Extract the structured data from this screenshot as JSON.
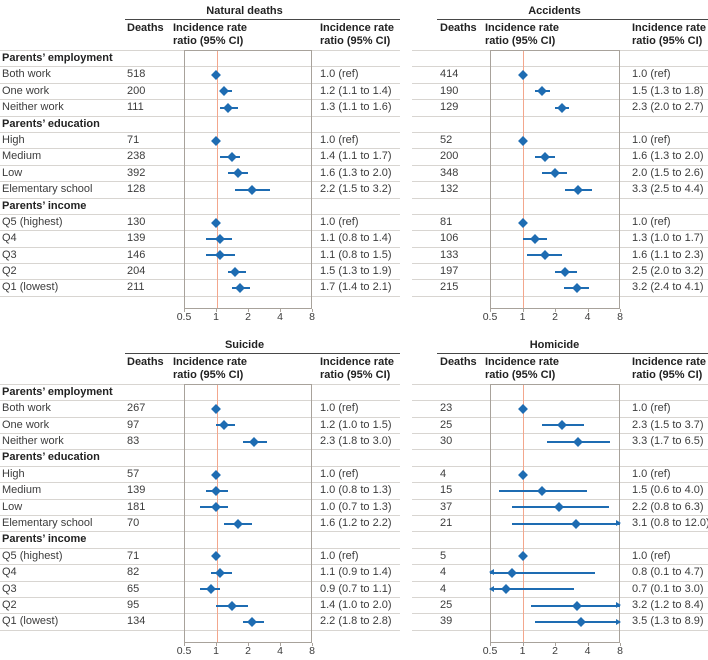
{
  "figure": {
    "axis": {
      "min": 0.5,
      "max": 8,
      "ticks": [
        0.5,
        1,
        2,
        4,
        8
      ],
      "tick_labels": [
        "0.5",
        "1",
        "2",
        "4",
        "8"
      ]
    },
    "ref_value": 1,
    "colors": {
      "marker": "#1e6cb2",
      "ref-line": "#f3a78d",
      "row-line": "#d8d5d1",
      "box-border": "#a8a29b",
      "title-rule": "#474747",
      "text": "#3c3c3c",
      "text-strong": "#222222"
    },
    "col_headers": {
      "deaths": "Deaths",
      "irr": "Incidence rate\nratio (95% CI)"
    }
  },
  "chart_data": {
    "type": "forest",
    "x_scale": "log2",
    "x_range": [
      0.5,
      8
    ],
    "x_ticks": [
      0.5,
      1,
      2,
      4,
      8
    ],
    "value_label": "Incidence rate ratio (95% CI)",
    "sections": [
      {
        "panel_titles": [
          "Natural deaths",
          "Accidents"
        ],
        "rows": [
          {
            "type": "group",
            "label": "Parents’ employment"
          },
          {
            "type": "data",
            "label": "Both work",
            "left": {
              "deaths": "518",
              "est": 1.0,
              "text": "1.0 (ref)"
            },
            "right": {
              "deaths": "414",
              "est": 1.0,
              "text": "1.0 (ref)"
            }
          },
          {
            "type": "data",
            "label": "One work",
            "left": {
              "deaths": "200",
              "est": 1.2,
              "lo": 1.1,
              "hi": 1.4,
              "text": "1.2 (1.1 to 1.4)"
            },
            "right": {
              "deaths": "190",
              "est": 1.5,
              "lo": 1.3,
              "hi": 1.8,
              "text": "1.5 (1.3 to 1.8)"
            }
          },
          {
            "type": "data",
            "label": "Neither work",
            "left": {
              "deaths": "111",
              "est": 1.3,
              "lo": 1.1,
              "hi": 1.6,
              "text": "1.3 (1.1 to 1.6)"
            },
            "right": {
              "deaths": "129",
              "est": 2.3,
              "lo": 2.0,
              "hi": 2.7,
              "text": "2.3 (2.0 to 2.7)"
            }
          },
          {
            "type": "group",
            "label": "Parents’ education"
          },
          {
            "type": "data",
            "label": "High",
            "left": {
              "deaths": "71",
              "est": 1.0,
              "text": "1.0 (ref)"
            },
            "right": {
              "deaths": "52",
              "est": 1.0,
              "text": "1.0 (ref)"
            }
          },
          {
            "type": "data",
            "label": "Medium",
            "left": {
              "deaths": "238",
              "est": 1.4,
              "lo": 1.1,
              "hi": 1.7,
              "text": "1.4 (1.1 to 1.7)"
            },
            "right": {
              "deaths": "200",
              "est": 1.6,
              "lo": 1.3,
              "hi": 2.0,
              "text": "1.6 (1.3 to 2.0)"
            }
          },
          {
            "type": "data",
            "label": "Low",
            "left": {
              "deaths": "392",
              "est": 1.6,
              "lo": 1.3,
              "hi": 2.0,
              "text": "1.6 (1.3 to 2.0)"
            },
            "right": {
              "deaths": "348",
              "est": 2.0,
              "lo": 1.5,
              "hi": 2.6,
              "text": "2.0 (1.5 to 2.6)"
            }
          },
          {
            "type": "data",
            "label": "Elementary school",
            "left": {
              "deaths": "128",
              "est": 2.2,
              "lo": 1.5,
              "hi": 3.2,
              "text": "2.2 (1.5 to 3.2)"
            },
            "right": {
              "deaths": "132",
              "est": 3.3,
              "lo": 2.5,
              "hi": 4.4,
              "text": "3.3 (2.5 to 4.4)"
            }
          },
          {
            "type": "group",
            "label": "Parents’ income"
          },
          {
            "type": "data",
            "label": "Q5 (highest)",
            "left": {
              "deaths": "130",
              "est": 1.0,
              "text": "1.0 (ref)"
            },
            "right": {
              "deaths": "81",
              "est": 1.0,
              "text": "1.0 (ref)"
            }
          },
          {
            "type": "data",
            "label": "Q4",
            "left": {
              "deaths": "139",
              "est": 1.1,
              "lo": 0.8,
              "hi": 1.4,
              "text": "1.1 (0.8 to 1.4)"
            },
            "right": {
              "deaths": "106",
              "est": 1.3,
              "lo": 1.0,
              "hi": 1.7,
              "text": "1.3 (1.0 to 1.7)"
            }
          },
          {
            "type": "data",
            "label": "Q3",
            "left": {
              "deaths": "146",
              "est": 1.1,
              "lo": 0.8,
              "hi": 1.5,
              "text": "1.1 (0.8 to 1.5)"
            },
            "right": {
              "deaths": "133",
              "est": 1.6,
              "lo": 1.1,
              "hi": 2.3,
              "text": "1.6 (1.1 to 2.3)"
            }
          },
          {
            "type": "data",
            "label": "Q2",
            "left": {
              "deaths": "204",
              "est": 1.5,
              "lo": 1.3,
              "hi": 1.9,
              "text": "1.5 (1.3 to 1.9)"
            },
            "right": {
              "deaths": "197",
              "est": 2.5,
              "lo": 2.0,
              "hi": 3.2,
              "text": "2.5 (2.0 to 3.2)"
            }
          },
          {
            "type": "data",
            "label": "Q1 (lowest)",
            "left": {
              "deaths": "211",
              "est": 1.7,
              "lo": 1.4,
              "hi": 2.1,
              "text": "1.7 (1.4 to 2.1)"
            },
            "right": {
              "deaths": "215",
              "est": 3.2,
              "lo": 2.4,
              "hi": 4.1,
              "text": "3.2 (2.4 to 4.1)"
            }
          }
        ]
      },
      {
        "panel_titles": [
          "Suicide",
          "Homicide"
        ],
        "rows": [
          {
            "type": "group",
            "label": "Parents’ employment"
          },
          {
            "type": "data",
            "label": "Both work",
            "left": {
              "deaths": "267",
              "est": 1.0,
              "text": "1.0 (ref)"
            },
            "right": {
              "deaths": "23",
              "est": 1.0,
              "text": "1.0 (ref)"
            }
          },
          {
            "type": "data",
            "label": "One work",
            "left": {
              "deaths": "97",
              "est": 1.2,
              "lo": 1.0,
              "hi": 1.5,
              "text": "1.2 (1.0 to 1.5)"
            },
            "right": {
              "deaths": "25",
              "est": 2.3,
              "lo": 1.5,
              "hi": 3.7,
              "text": "2.3 (1.5 to 3.7)"
            }
          },
          {
            "type": "data",
            "label": "Neither work",
            "left": {
              "deaths": "83",
              "est": 2.3,
              "lo": 1.8,
              "hi": 3.0,
              "text": "2.3 (1.8 to 3.0)"
            },
            "right": {
              "deaths": "30",
              "est": 3.3,
              "lo": 1.7,
              "hi": 6.5,
              "text": "3.3 (1.7 to 6.5)"
            }
          },
          {
            "type": "group",
            "label": "Parents’ education"
          },
          {
            "type": "data",
            "label": "High",
            "left": {
              "deaths": "57",
              "est": 1.0,
              "text": "1.0 (ref)"
            },
            "right": {
              "deaths": "4",
              "est": 1.0,
              "text": "1.0 (ref)"
            }
          },
          {
            "type": "data",
            "label": "Medium",
            "left": {
              "deaths": "139",
              "est": 1.0,
              "lo": 0.8,
              "hi": 1.3,
              "text": "1.0 (0.8 to 1.3)"
            },
            "right": {
              "deaths": "15",
              "est": 1.5,
              "lo": 0.6,
              "hi": 4.0,
              "text": "1.5 (0.6 to 4.0)"
            }
          },
          {
            "type": "data",
            "label": "Low",
            "left": {
              "deaths": "181",
              "est": 1.0,
              "lo": 0.7,
              "hi": 1.3,
              "text": "1.0 (0.7 to 1.3)"
            },
            "right": {
              "deaths": "37",
              "est": 2.2,
              "lo": 0.8,
              "hi": 6.3,
              "text": "2.2 (0.8 to 6.3)"
            }
          },
          {
            "type": "data",
            "label": "Elementary school",
            "left": {
              "deaths": "70",
              "est": 1.6,
              "lo": 1.2,
              "hi": 2.2,
              "text": "1.6 (1.2 to 2.2)"
            },
            "right": {
              "deaths": "21",
              "est": 3.1,
              "lo": 0.8,
              "hi": 12.0,
              "text": "3.1 (0.8 to 12.0)"
            }
          },
          {
            "type": "group",
            "label": "Parents’ income"
          },
          {
            "type": "data",
            "label": "Q5 (highest)",
            "left": {
              "deaths": "71",
              "est": 1.0,
              "text": "1.0 (ref)"
            },
            "right": {
              "deaths": "5",
              "est": 1.0,
              "text": "1.0 (ref)"
            }
          },
          {
            "type": "data",
            "label": "Q4",
            "left": {
              "deaths": "82",
              "est": 1.1,
              "lo": 0.9,
              "hi": 1.4,
              "text": "1.1 (0.9 to 1.4)"
            },
            "right": {
              "deaths": "4",
              "est": 0.8,
              "lo": 0.1,
              "hi": 4.7,
              "text": "0.8 (0.1 to 4.7)"
            }
          },
          {
            "type": "data",
            "label": "Q3",
            "left": {
              "deaths": "65",
              "est": 0.9,
              "lo": 0.7,
              "hi": 1.1,
              "text": "0.9 (0.7 to 1.1)"
            },
            "right": {
              "deaths": "4",
              "est": 0.7,
              "lo": 0.1,
              "hi": 3.0,
              "text": "0.7 (0.1 to 3.0)"
            }
          },
          {
            "type": "data",
            "label": "Q2",
            "left": {
              "deaths": "95",
              "est": 1.4,
              "lo": 1.0,
              "hi": 2.0,
              "text": "1.4 (1.0 to 2.0)"
            },
            "right": {
              "deaths": "25",
              "est": 3.2,
              "lo": 1.2,
              "hi": 8.4,
              "text": "3.2 (1.2 to 8.4)"
            }
          },
          {
            "type": "data",
            "label": "Q1 (lowest)",
            "left": {
              "deaths": "134",
              "est": 2.2,
              "lo": 1.8,
              "hi": 2.8,
              "text": "2.2 (1.8 to 2.8)"
            },
            "right": {
              "deaths": "39",
              "est": 3.5,
              "lo": 1.3,
              "hi": 8.9,
              "text": "3.5 (1.3 to 8.9)"
            }
          }
        ]
      }
    ]
  }
}
